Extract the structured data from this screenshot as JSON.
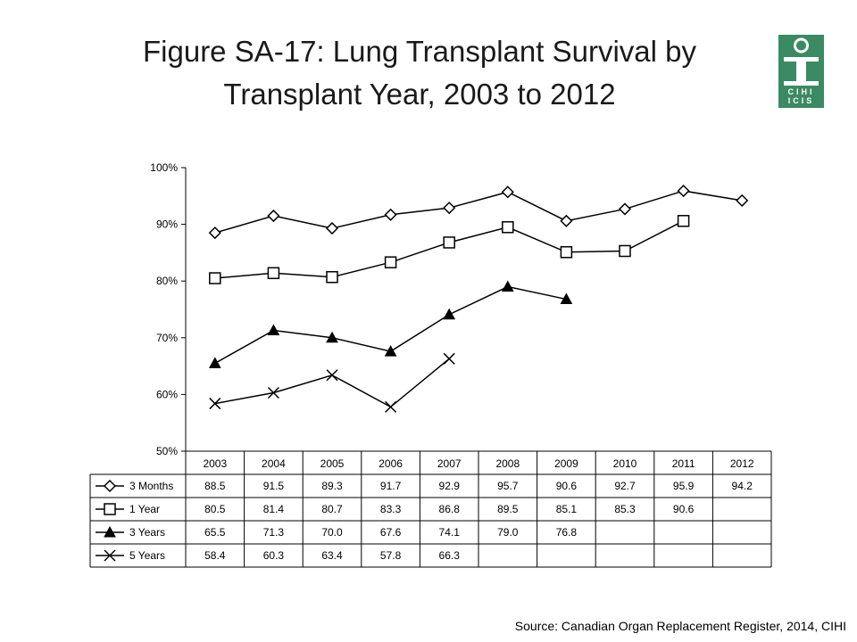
{
  "title": "Figure SA-17: Lung Transplant Survival by Transplant Year, 2003 to 2012",
  "source": "Source: Canadian Organ Replacement Register, 2014, CIHI",
  "logo": {
    "text": [
      "CIHI",
      "ICIS"
    ],
    "color": "#3a8a63"
  },
  "chart_data": {
    "type": "line",
    "categories": [
      "2003",
      "2004",
      "2005",
      "2006",
      "2007",
      "2008",
      "2009",
      "2010",
      "2011",
      "2012"
    ],
    "yticks": [
      "50%",
      "60%",
      "70%",
      "80%",
      "90%",
      "100%"
    ],
    "ylim": [
      50,
      100
    ],
    "grid": false,
    "legend": "data-table",
    "series": [
      {
        "name": "3 Months",
        "marker": "diamond",
        "values": [
          88.5,
          91.5,
          89.3,
          91.7,
          92.9,
          95.7,
          90.6,
          92.7,
          95.9,
          94.2
        ],
        "labels": [
          "88.5",
          "91.5",
          "89.3",
          "91.7",
          "92.9",
          "95.7",
          "90.6",
          "92.7",
          "95.9",
          "94.2"
        ]
      },
      {
        "name": "1 Year",
        "marker": "square",
        "values": [
          80.5,
          81.4,
          80.7,
          83.3,
          86.8,
          89.5,
          85.1,
          85.3,
          90.6,
          null
        ],
        "labels": [
          "80.5",
          "81.4",
          "80.7",
          "83.3",
          "86.8",
          "89.5",
          "85.1",
          "85.3",
          "90.6",
          ""
        ]
      },
      {
        "name": "3 Years",
        "marker": "triangle",
        "values": [
          65.5,
          71.3,
          70.0,
          67.6,
          74.1,
          79.0,
          76.8,
          null,
          null,
          null
        ],
        "labels": [
          "65.5",
          "71.3",
          "70.0",
          "67.6",
          "74.1",
          "79.0",
          "76.8",
          "",
          "",
          ""
        ]
      },
      {
        "name": "5 Years",
        "marker": "x",
        "values": [
          58.4,
          60.3,
          63.4,
          57.8,
          66.3,
          null,
          null,
          null,
          null,
          null
        ],
        "labels": [
          "58.4",
          "60.3",
          "63.4",
          "57.8",
          "66.3",
          "",
          "",
          "",
          "",
          ""
        ]
      }
    ]
  }
}
